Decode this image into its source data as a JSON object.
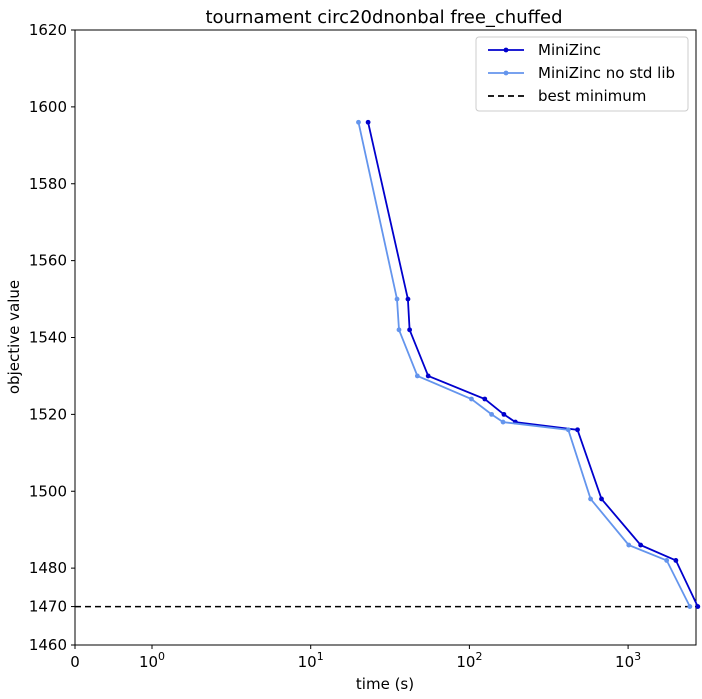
{
  "chart_data": {
    "type": "line",
    "title": "tournament circ20dnonbal free_chuffed",
    "xlabel": "time (s)",
    "ylabel": "objective value",
    "xscale": "symlog",
    "xlim": [
      0,
      3500
    ],
    "ylim": [
      1460,
      1620
    ],
    "x_ticks": [
      {
        "value": 0,
        "base": "0",
        "exp": ""
      },
      {
        "value": 1,
        "base": "10",
        "exp": "0"
      },
      {
        "value": 10,
        "base": "10",
        "exp": "1"
      },
      {
        "value": 100,
        "base": "10",
        "exp": "2"
      },
      {
        "value": 1000,
        "base": "10",
        "exp": "3"
      }
    ],
    "y_ticks": [
      "1460",
      "1470",
      "1480",
      "1500",
      "1520",
      "1540",
      "1560",
      "1580",
      "1600",
      "1620"
    ],
    "y_tick_values": [
      1460,
      1470,
      1480,
      1500,
      1520,
      1540,
      1560,
      1580,
      1600,
      1620
    ],
    "grid": false,
    "legend_position": "top-right",
    "series": [
      {
        "name": "MiniZinc",
        "color": "#0000cd",
        "x": [
          23,
          41,
          42,
          55,
          125,
          165,
          195,
          480,
          680,
          1200,
          2000,
          2750
        ],
        "y": [
          1596,
          1550,
          1542,
          1530,
          1524,
          1520,
          1518,
          1516,
          1498,
          1486,
          1482,
          1470
        ]
      },
      {
        "name": "MiniZinc no std lib",
        "color": "#6495ed",
        "x": [
          20,
          35,
          36,
          47,
          103,
          138,
          163,
          420,
          580,
          1010,
          1750,
          2450
        ],
        "y": [
          1596,
          1550,
          1542,
          1530,
          1524,
          1520,
          1518,
          1516,
          1498,
          1486,
          1482,
          1470
        ]
      }
    ],
    "reference_line": {
      "name": "best minimum",
      "y": 1470,
      "color": "#000000",
      "style": "dashed"
    }
  }
}
